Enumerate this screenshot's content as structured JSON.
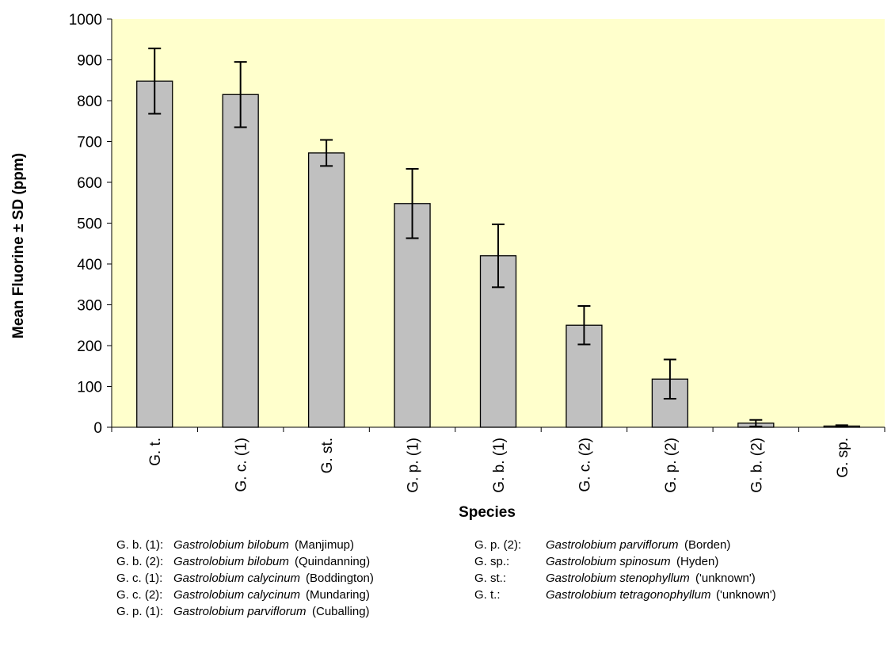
{
  "chart_data": {
    "type": "bar",
    "title": "",
    "xlabel": "Species",
    "ylabel": "Mean Fluorine ± SD (ppm)",
    "ylim": [
      0,
      1000
    ],
    "yticks": [
      0,
      100,
      200,
      300,
      400,
      500,
      600,
      700,
      800,
      900,
      1000
    ],
    "categories": [
      "G. t.",
      "G. c. (1)",
      "G. st.",
      "G. p. (1)",
      "G. b. (1)",
      "G. c. (2)",
      "G. p. (2)",
      "G. b. (2)",
      "G. sp."
    ],
    "values": [
      848,
      815,
      672,
      548,
      420,
      250,
      118,
      10,
      3
    ],
    "errors": [
      80,
      80,
      32,
      85,
      77,
      47,
      48,
      8,
      2
    ],
    "grid": false,
    "colors": {
      "plot_bg": "#ffffcc",
      "bar_fill": "#c0c0c0",
      "bar_stroke": "#000000"
    }
  },
  "legend": {
    "left": [
      {
        "code": "G. b. (1):",
        "name": "Gastrolobium bilobum",
        "loc": "(Manjimup)"
      },
      {
        "code": "G. b. (2):",
        "name": "Gastrolobium bilobum",
        "loc": "(Quindanning)"
      },
      {
        "code": "G. c. (1):",
        "name": "Gastrolobium calycinum",
        "loc": "(Boddington)"
      },
      {
        "code": "G. c. (2):",
        "name": "Gastrolobium calycinum",
        "loc": "(Mundaring)"
      },
      {
        "code": "G. p. (1):",
        "name": "Gastrolobium parviflorum",
        "loc": "(Cuballing)"
      }
    ],
    "right": [
      {
        "code": "G. p. (2):",
        "name": "Gastrolobium parviflorum",
        "loc": "(Borden)"
      },
      {
        "code": "G. sp.:",
        "name": "Gastrolobium spinosum",
        "loc": "(Hyden)"
      },
      {
        "code": "G. st.:",
        "name": "Gastrolobium stenophyllum",
        "loc": "('unknown')"
      },
      {
        "code": "G. t.:",
        "name": "Gastrolobium tetragonophyllum",
        "loc": "('unknown')"
      }
    ]
  }
}
